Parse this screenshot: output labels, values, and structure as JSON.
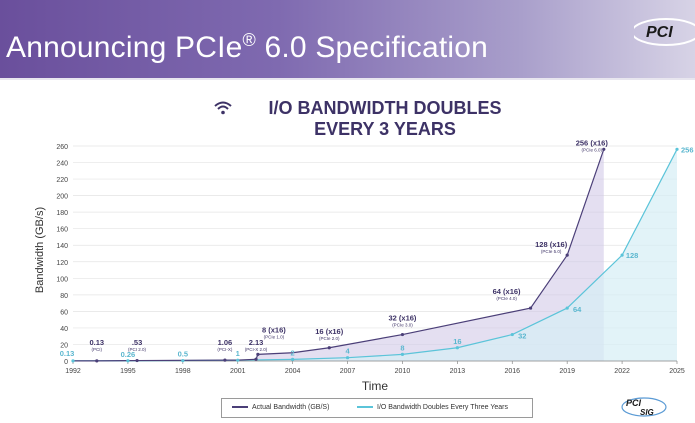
{
  "header": {
    "title_pre": "Announcing PCIe",
    "title_sup": "®",
    "title_post": " 6.0 Specification",
    "logo_text": "PCI"
  },
  "chart_data": {
    "type": "line",
    "title_line1": "I/O BANDWIDTH DOUBLES",
    "title_line2": "EVERY 3 YEARS",
    "xlabel": "Time",
    "ylabel": "Bandwidth (GB/s)",
    "xlim": [
      1992,
      2025
    ],
    "ylim": [
      0,
      260
    ],
    "xticks": [
      1992,
      1995,
      1998,
      2001,
      2004,
      2007,
      2010,
      2013,
      2016,
      2019,
      2022,
      2025
    ],
    "yticks": [
      0,
      20,
      40,
      60,
      80,
      100,
      120,
      140,
      160,
      180,
      200,
      220,
      240,
      260
    ],
    "grid": true,
    "legend_position": "bottom",
    "series": [
      {
        "name": "Actual Bandwidth (GB/S)",
        "color": "#4b3f78",
        "points": [
          {
            "x": 1992,
            "y": 0.13
          },
          {
            "x": 1993.3,
            "y": 0.13
          },
          {
            "x": 1995.5,
            "y": 0.53
          },
          {
            "x": 2000.3,
            "y": 1.06
          },
          {
            "x": 2001,
            "y": 1.06
          },
          {
            "x": 2002,
            "y": 2.13
          },
          {
            "x": 2002.1,
            "y": 8
          },
          {
            "x": 2004,
            "y": 10
          },
          {
            "x": 2006,
            "y": 16
          },
          {
            "x": 2010,
            "y": 32
          },
          {
            "x": 2017,
            "y": 64
          },
          {
            "x": 2019,
            "y": 128
          },
          {
            "x": 2021,
            "y": 256
          }
        ],
        "labels": [
          {
            "x": 1993.3,
            "y": 0.13,
            "value": "0.13",
            "sub": "(PCI)"
          },
          {
            "x": 1995.5,
            "y": 0.53,
            "value": ".53",
            "sub": "(PCI 2.0)"
          },
          {
            "x": 2000.3,
            "y": 1.06,
            "value": "1.06",
            "sub": "(PCI-X)"
          },
          {
            "x": 2002,
            "y": 2.13,
            "value": "2.13",
            "sub": "(PCI-X 2.0)"
          },
          {
            "x": 2002.1,
            "y": 8,
            "value": "8 (x16)",
            "sub": "(PCIe 1.0)"
          },
          {
            "x": 2006,
            "y": 16,
            "value": "16 (x16)",
            "sub": "(PCIe 2.0)"
          },
          {
            "x": 2010,
            "y": 32,
            "value": "32 (x16)",
            "sub": "(PCIe 3.0)"
          },
          {
            "x": 2017,
            "y": 64,
            "value": "64 (x16)",
            "sub": "(PCIe 4.0)"
          },
          {
            "x": 2019,
            "y": 128,
            "value": "128 (x16)",
            "sub": "(PCIe 5.0)"
          },
          {
            "x": 2021,
            "y": 256,
            "value": "256 (x16)",
            "sub": "(PCIe 6.0)"
          }
        ]
      },
      {
        "name": "I/O Bandwidth Doubles Every Three Years",
        "color": "#5bc4d9",
        "points": [
          {
            "x": 1992,
            "y": 0.13
          },
          {
            "x": 1995,
            "y": 0.26
          },
          {
            "x": 1998,
            "y": 0.5
          },
          {
            "x": 2001,
            "y": 1
          },
          {
            "x": 2004,
            "y": 2
          },
          {
            "x": 2007,
            "y": 4
          },
          {
            "x": 2010,
            "y": 8
          },
          {
            "x": 2013,
            "y": 16
          },
          {
            "x": 2016,
            "y": 32
          },
          {
            "x": 2019,
            "y": 64
          },
          {
            "x": 2022,
            "y": 128
          },
          {
            "x": 2025,
            "y": 256
          }
        ],
        "labels": [
          {
            "x": 1992,
            "y": 0.13,
            "value": "0.13"
          },
          {
            "x": 1995,
            "y": 0.26,
            "value": "0.26"
          },
          {
            "x": 1998,
            "y": 0.5,
            "value": "0.5"
          },
          {
            "x": 2001,
            "y": 1,
            "value": "1"
          },
          {
            "x": 2004,
            "y": 2,
            "value": "2"
          },
          {
            "x": 2007,
            "y": 4,
            "value": "4"
          },
          {
            "x": 2010,
            "y": 8,
            "value": "8"
          },
          {
            "x": 2013,
            "y": 16,
            "value": "16"
          },
          {
            "x": 2016,
            "y": 32,
            "value": "32"
          },
          {
            "x": 2019,
            "y": 64,
            "value": "64"
          },
          {
            "x": 2022,
            "y": 128,
            "value": "128"
          },
          {
            "x": 2025,
            "y": 256,
            "value": "256"
          }
        ]
      }
    ]
  },
  "footer": {
    "logo_text_1": "PCI",
    "logo_text_2": "SIG"
  }
}
